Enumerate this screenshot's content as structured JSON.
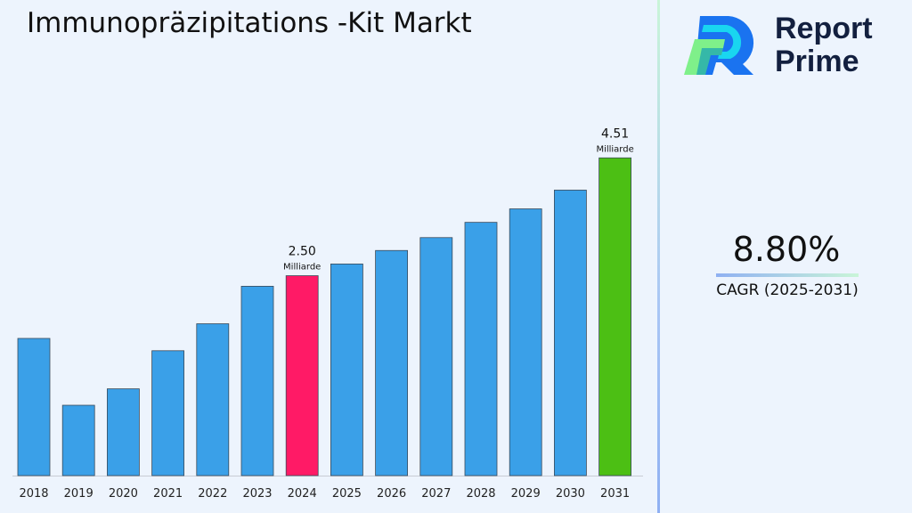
{
  "title": "Immunopräzipitations -Kit Markt",
  "brand": {
    "line1": "Report",
    "line2": "Prime"
  },
  "cagr": {
    "value": "8.80%",
    "label": "CAGR (2025-2031)"
  },
  "colors": {
    "bar": "#3aa0e8",
    "highlight_2024": "#ff1a66",
    "highlight_2031": "#4cbf14",
    "background": "#edf4fd"
  },
  "chart_data": {
    "type": "bar",
    "title": "Immunopräzipitations -Kit Markt",
    "xlabel": "",
    "ylabel": "",
    "categories": [
      "2018",
      "2019",
      "2020",
      "2021",
      "2022",
      "2023",
      "2024",
      "2025",
      "2026",
      "2027",
      "2028",
      "2029",
      "2030",
      "2031"
    ],
    "values": [
      1.43,
      0.29,
      0.57,
      1.22,
      1.68,
      2.32,
      2.5,
      2.7,
      2.93,
      3.15,
      3.41,
      3.64,
      3.96,
      4.51
    ],
    "ylim": [
      -0.91,
      5.0
    ],
    "grid": false,
    "annotations": [
      {
        "category": "2024",
        "value": "2.50",
        "unit": "Milliarde"
      },
      {
        "category": "2031",
        "value": "4.51",
        "unit": "Milliarde"
      }
    ]
  }
}
